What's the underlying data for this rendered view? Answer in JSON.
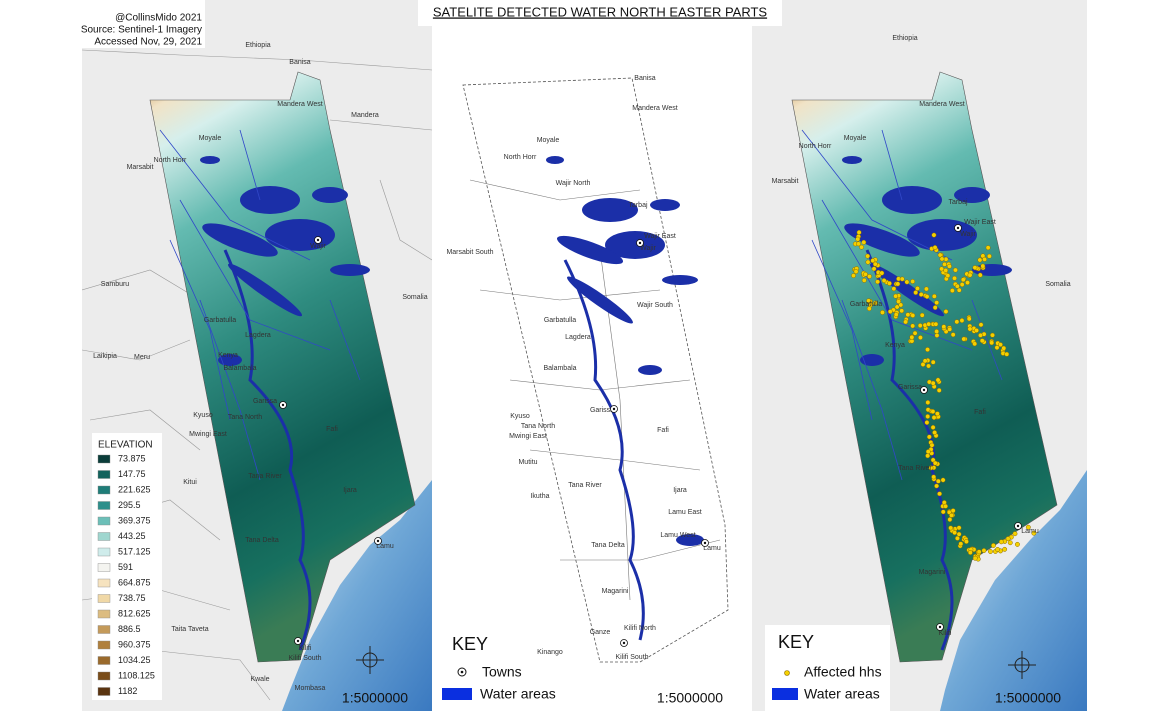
{
  "title": "SATELITE DETECTED WATER NORTH EASTER PARTS",
  "credits": [
    "@CollinsMido 2021",
    "Source: Sentinel-1 Imagery",
    "Accessed Nov, 29, 2021"
  ],
  "elevation_legend": {
    "title": "ELEVATION",
    "values": [
      73.875,
      147.75,
      221.625,
      295.5,
      369.375,
      443.25,
      517.125,
      591,
      664.875,
      738.75,
      812.625,
      886.5,
      960.375,
      1034.25,
      1108.125,
      1182
    ],
    "colors": [
      "#0b3d3a",
      "#13625c",
      "#1f7d78",
      "#2e8f8b",
      "#6cbfb8",
      "#9fd6cf",
      "#cfeceb",
      "#f4f4f0",
      "#f6e3bf",
      "#f0d8a6",
      "#dcbc80",
      "#c49a5a",
      "#b0803d",
      "#9a6a2c",
      "#7a4d1a",
      "#5a3410"
    ]
  },
  "left_map": {
    "places": [
      "Ethiopia",
      "Banisa",
      "Mandera West",
      "Mandera",
      "Moyale",
      "North Horr",
      "Marsabit",
      "Wajir",
      "Samburu",
      "Somalia",
      "Garbatulla",
      "Lagdera",
      "Kenya",
      "Meru",
      "Laikipia",
      "Balambala",
      "Garissa",
      "Kyuso",
      "Tana North",
      "Mwingi East",
      "Fafi",
      "Kitui",
      "Tana River",
      "Ijara",
      "Lamu",
      "Tana Delta",
      "Taita Taveta",
      "Kilifi",
      "Kilifi South",
      "Kwale",
      "Mombasa"
    ],
    "scale": "1:5000000"
  },
  "middle_map": {
    "places": [
      "Banisa",
      "Mandera West",
      "Moyale",
      "North Horr",
      "Wajir North",
      "Marsabit South",
      "Tarbaj",
      "Wajir East",
      "Wajir",
      "Wajir South",
      "Garbatulla",
      "Lagdera",
      "Balambala",
      "Garissa",
      "Tana North",
      "Kyuso",
      "Mwingi East",
      "Fafi",
      "Mutitu",
      "Tana River",
      "Ikutha",
      "Ijara",
      "Lamu East",
      "Lamu West",
      "Lamu",
      "Tana Delta",
      "Magarini",
      "Ganze",
      "Kilifi North",
      "Kinango",
      "Kilifi South"
    ],
    "key": {
      "title": "KEY",
      "items": [
        "Towns",
        "Water areas"
      ]
    },
    "scale": "1:5000000"
  },
  "right_map": {
    "places": [
      "Ethiopia",
      "Mandera West",
      "Moyale",
      "North Horr",
      "Marsabit",
      "Tarbaj",
      "Wajir East",
      "Wajir",
      "Somalia",
      "Garbatulla",
      "Kenya",
      "Garissa",
      "Fafi",
      "Tana River",
      "Lamu",
      "Magarini",
      "Kilifi"
    ],
    "key": {
      "title": "KEY",
      "items": [
        "Affected hhs",
        "Water areas"
      ]
    },
    "scale": "1:5000000"
  }
}
